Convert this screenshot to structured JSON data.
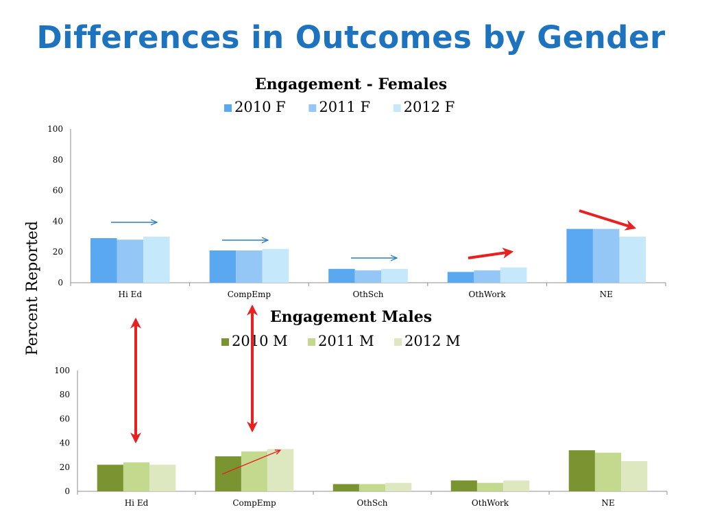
{
  "slide": {
    "title": "Differences in Outcomes by Gender",
    "y_axis_label": "Percent Reported"
  },
  "chart_data": [
    {
      "type": "bar",
      "title": "Engagement - Females",
      "categories": [
        "Hi Ed",
        "CompEmp",
        "OthSch",
        "OthWork",
        "NE"
      ],
      "series": [
        {
          "name": "2010 F",
          "color": "#5aa9f0",
          "values": [
            29,
            21,
            9,
            7,
            35
          ]
        },
        {
          "name": "2011 F",
          "color": "#94c6f6",
          "values": [
            28,
            21,
            8,
            8,
            35
          ]
        },
        {
          "name": "2012 F",
          "color": "#c5e9fb",
          "values": [
            30,
            22,
            9,
            10,
            30
          ]
        }
      ],
      "ylim": [
        0,
        100
      ],
      "yticks": [
        0,
        20,
        40,
        60,
        80,
        100
      ],
      "legend": "top-center",
      "grid": false
    },
    {
      "type": "bar",
      "title": "Engagement Males",
      "categories": [
        "Hi Ed",
        "CompEmp",
        "OthSch",
        "OthWork",
        "NE"
      ],
      "series": [
        {
          "name": "2010 M",
          "color": "#7a9431",
          "values": [
            22,
            29,
            6,
            9,
            34
          ]
        },
        {
          "name": "2011 M",
          "color": "#c3d98e",
          "values": [
            24,
            33,
            6,
            7,
            32
          ]
        },
        {
          "name": "2012 M",
          "color": "#dde8c0",
          "values": [
            22,
            35,
            7,
            9,
            25
          ]
        }
      ],
      "ylim": [
        0,
        100
      ],
      "yticks": [
        0,
        20,
        40,
        60,
        80,
        100
      ],
      "legend": "top-center",
      "grid": false
    }
  ]
}
